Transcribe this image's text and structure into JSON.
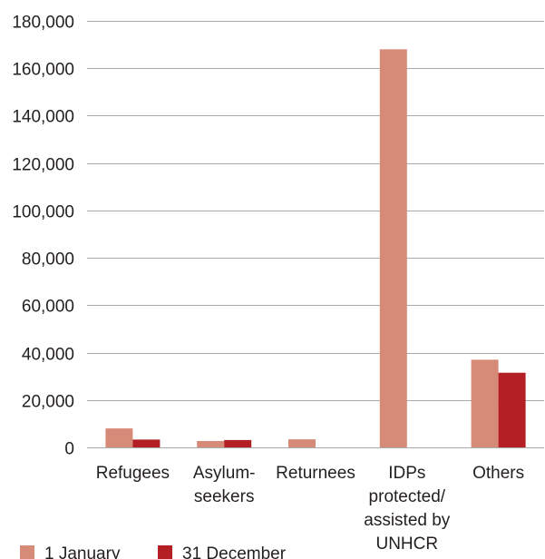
{
  "chart_data": {
    "type": "bar",
    "title": "",
    "xlabel": "",
    "ylabel": "",
    "ylim": [
      0,
      180000
    ],
    "yticks": [
      0,
      20000,
      40000,
      60000,
      80000,
      100000,
      120000,
      140000,
      160000,
      180000
    ],
    "ytick_labels": [
      "0",
      "20,000",
      "40,000",
      "60,000",
      "80,000",
      "100,000",
      "120,000",
      "140,000",
      "160,000",
      "180,000"
    ],
    "grid": true,
    "legend_position": "bottom-left",
    "categories": [
      [
        "Refugees"
      ],
      [
        "Asylum-",
        "seekers"
      ],
      [
        "Returnees"
      ],
      [
        "IDPs",
        "protected/",
        "assisted by",
        "UNHCR"
      ],
      [
        "Others"
      ]
    ],
    "series": [
      {
        "name": "1 January",
        "color": "#d68a78",
        "values": [
          8000,
          2700,
          3400,
          168000,
          37000
        ]
      },
      {
        "name": "31 December",
        "color": "#b31f24",
        "values": [
          3300,
          3100,
          0,
          0,
          31500
        ]
      }
    ]
  }
}
